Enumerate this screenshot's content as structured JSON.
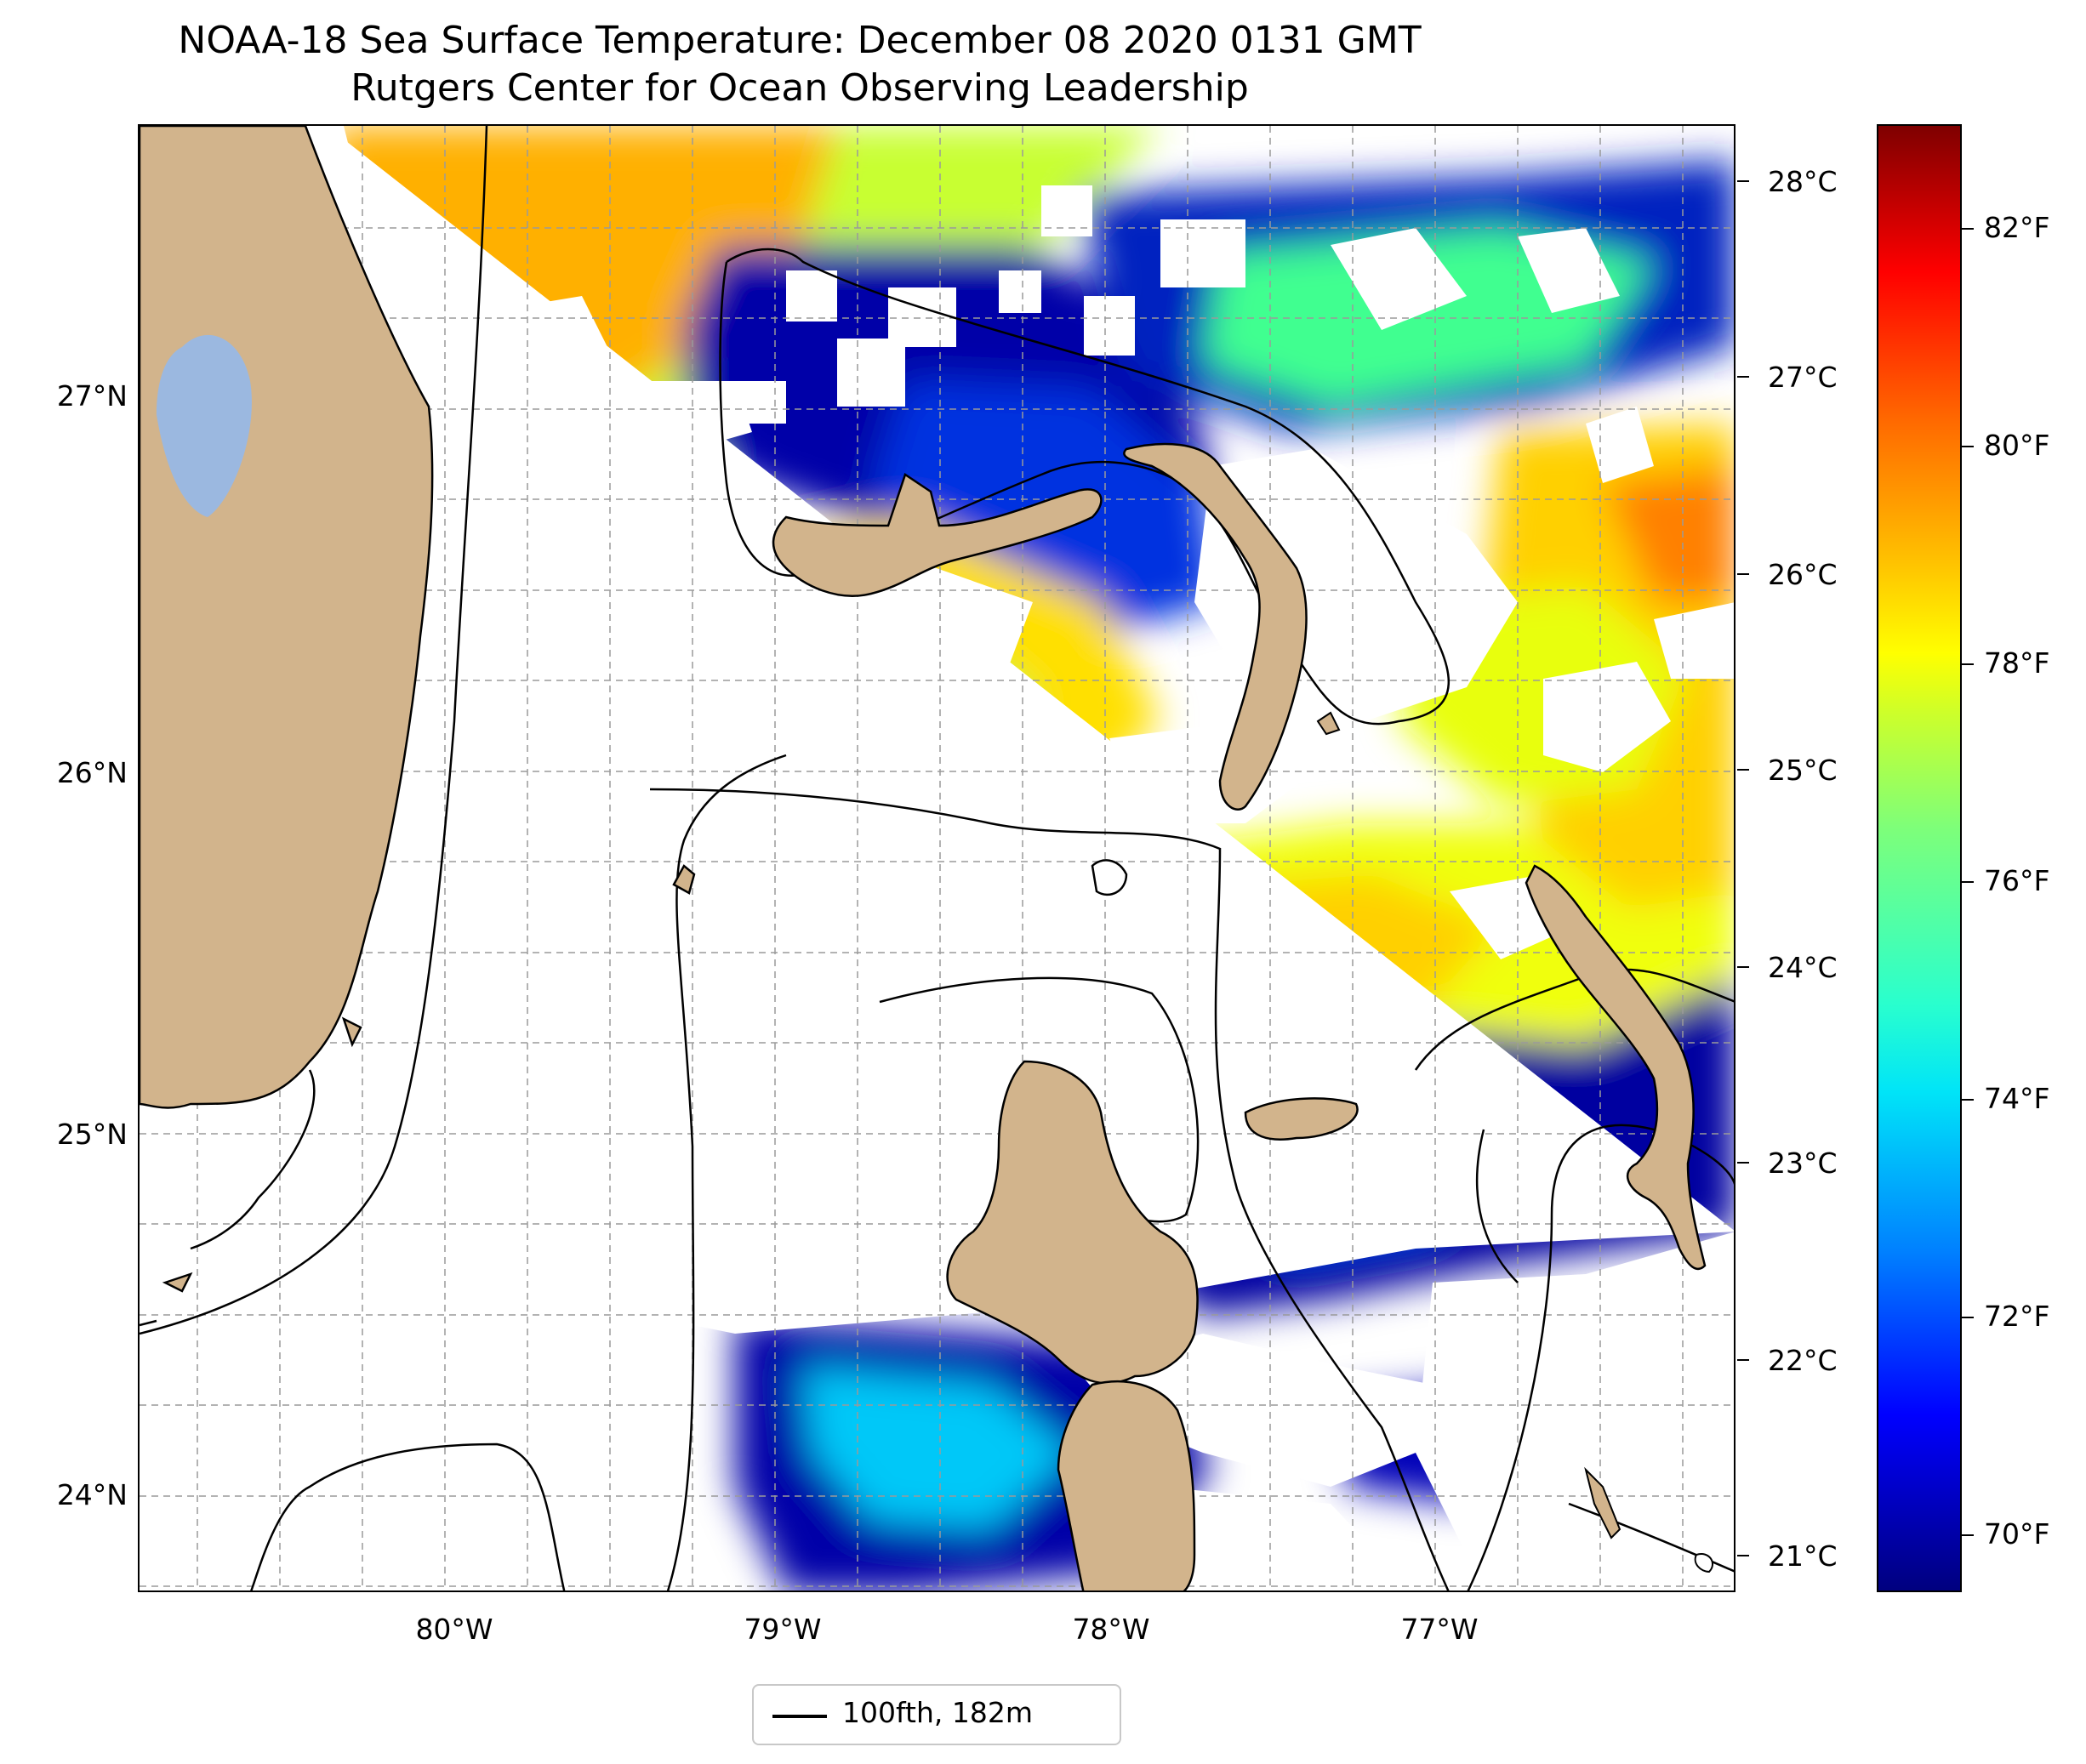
{
  "map": {
    "title": "NOAA-18 Sea Surface Temperature: December 08 2020 0131 GMT",
    "subtitle": "Rutgers Center for Ocean Observing Leadership",
    "extent": {
      "lon_min": -80.98,
      "lon_max": -76.15,
      "lat_min": 23.75,
      "lat_max": 27.82
    },
    "lat_ticks": [
      {
        "value": 27,
        "label": "27°N"
      },
      {
        "value": 26,
        "label": "26°N"
      },
      {
        "value": 25,
        "label": "25°N"
      },
      {
        "value": 24,
        "label": "24°N"
      }
    ],
    "lon_ticks": [
      {
        "value": -80,
        "label": "80°W"
      },
      {
        "value": -79,
        "label": "79°W"
      },
      {
        "value": -78,
        "label": "78°W"
      },
      {
        "value": -77,
        "label": "77°W"
      }
    ],
    "grid": true,
    "colors": {
      "land": "#d2b48c",
      "lake": "#9bb8e0",
      "no_data": "#ffffff",
      "sst_scale": [
        "#00007f",
        "#0000ff",
        "#007fff",
        "#00e4f8",
        "#7dff7a",
        "#ffff00",
        "#ff6800",
        "#ff0000",
        "#7f0000"
      ]
    },
    "features": [
      {
        "name": "Florida mainland",
        "type": "land"
      },
      {
        "name": "Lake Okeechobee",
        "type": "lake"
      },
      {
        "name": "Florida Keys",
        "type": "land"
      },
      {
        "name": "Grand Bahama",
        "type": "land"
      },
      {
        "name": "Great Abaco",
        "type": "land"
      },
      {
        "name": "Andros Island",
        "type": "land"
      },
      {
        "name": "Eleuthera",
        "type": "land"
      },
      {
        "name": "New Providence",
        "type": "land"
      },
      {
        "name": "Bimini",
        "type": "land"
      },
      {
        "name": "Berry Islands",
        "type": "land"
      }
    ]
  },
  "colorbar": {
    "range_f": [
      69.5,
      83
    ],
    "celsius_ticks": [
      {
        "value": 28,
        "label": "28°C"
      },
      {
        "value": 27,
        "label": "27°C"
      },
      {
        "value": 26,
        "label": "26°C"
      },
      {
        "value": 25,
        "label": "25°C"
      },
      {
        "value": 24,
        "label": "24°C"
      },
      {
        "value": 23,
        "label": "23°C"
      },
      {
        "value": 22,
        "label": "22°C"
      },
      {
        "value": 21,
        "label": "21°C"
      }
    ],
    "fahrenheit_ticks": [
      {
        "value": 82,
        "label": "82°F"
      },
      {
        "value": 80,
        "label": "80°F"
      },
      {
        "value": 78,
        "label": "78°F"
      },
      {
        "value": 76,
        "label": "76°F"
      },
      {
        "value": 74,
        "label": "74°F"
      },
      {
        "value": 72,
        "label": "72°F"
      },
      {
        "value": 70,
        "label": "70°F"
      }
    ]
  },
  "legend": {
    "label": "100fth, 182m"
  }
}
